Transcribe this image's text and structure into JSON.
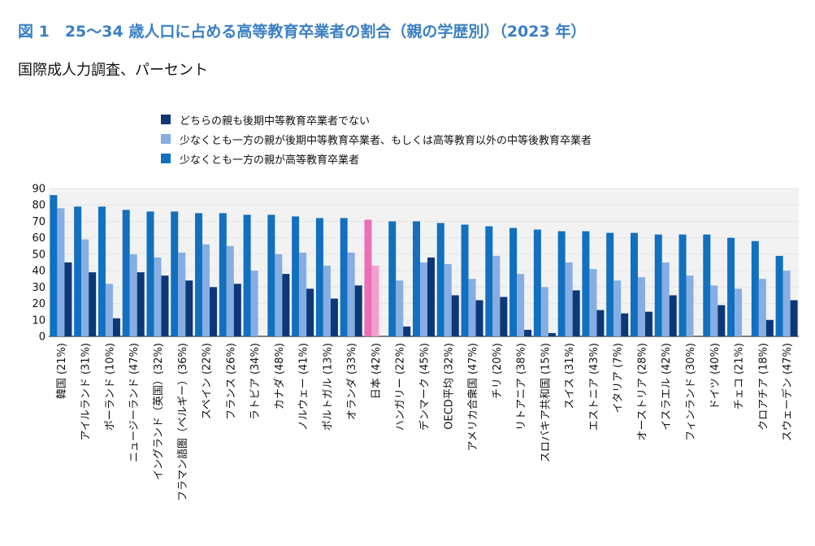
{
  "title": "図 1　25～34 歳人口に占める高等教育卒業者の割合（親の学歴別）（2023 年）",
  "subtitle": "国際成人力調査、パーセント",
  "colors": {
    "none": "#0d3878",
    "upper_secondary": "#86aee3",
    "tertiary": "#1170bf",
    "japan_tertiary": "#ee6fb8",
    "japan_upper_secondary": "#f0a2cf",
    "grid": "#e6e6e6",
    "plot_bg": "#f2f2f2"
  },
  "legend": [
    "どちらの親も後期中等教育卒業者でない",
    "少なくとも一方の親が後期中等教育卒業者、もしくは高等教育以外の中等後教育卒業者",
    "少なくとも一方の親が高等教育卒業者"
  ],
  "chart_data": {
    "type": "bar",
    "highlight": "日本 (42%)",
    "ylim": [
      0,
      90
    ],
    "yticks": [
      "0",
      "10",
      "20",
      "30",
      "40",
      "50",
      "60",
      "70",
      "80",
      "90"
    ],
    "grid": true,
    "legend_position": "top",
    "categories": [
      "韓国 (21%)",
      "アイルランド (31%)",
      "ポーランド (10%)",
      "ニュージーランド (47%)",
      "イングランド（英国）(32%)",
      "フラマン語圏（ベルギー）(36%)",
      "スペイン (22%)",
      "フランス (26%)",
      "ラトビア (34%)",
      "カナダ (48%)",
      "ノルウェー (41%)",
      "ポルトガル (13%)",
      "オランダ (33%)",
      "日本 (42%)",
      "ハンガリー (22%)",
      "デンマーク (45%)",
      "OECD平均 (32%)",
      "アメリカ合衆国 (47%)",
      "チリ (20%)",
      "リトアニア (38%)",
      "スロバキア共和国 (15%)",
      "スイス (31%)",
      "エストニア (43%)",
      "イタリア (7%)",
      "オーストリア (28%)",
      "イスラエル (42%)",
      "フィンランド (30%)",
      "ドイツ (40%)",
      "チェコ (21%)",
      "クロアチア (18%)",
      "スウェーデン (47%)"
    ],
    "series": [
      {
        "name": "少なくとも一方の親が高等教育卒業者",
        "values": [
          86,
          79,
          79,
          77,
          76,
          76,
          75,
          75,
          74,
          74,
          73,
          72,
          72,
          71,
          70,
          70,
          69,
          68,
          67,
          66,
          65,
          64,
          64,
          63,
          63,
          62,
          62,
          62,
          60,
          58,
          49
        ]
      },
      {
        "name": "少なくとも一方の親が後期中等教育卒業者、もしくは高等教育以外の中等後教育卒業者",
        "values": [
          78,
          59,
          32,
          50,
          48,
          51,
          56,
          55,
          40,
          50,
          51,
          43,
          51,
          43,
          34,
          45,
          44,
          35,
          49,
          38,
          30,
          45,
          41,
          34,
          36,
          45,
          37,
          31,
          29,
          35,
          40
        ]
      },
      {
        "name": "どちらの親も後期中等教育卒業者でない",
        "values": [
          45,
          39,
          11,
          39,
          37,
          34,
          30,
          32,
          null,
          38,
          29,
          23,
          31,
          null,
          6,
          48,
          25,
          22,
          24,
          4,
          2,
          28,
          16,
          14,
          15,
          25,
          null,
          19,
          null,
          10,
          22
        ]
      }
    ]
  }
}
